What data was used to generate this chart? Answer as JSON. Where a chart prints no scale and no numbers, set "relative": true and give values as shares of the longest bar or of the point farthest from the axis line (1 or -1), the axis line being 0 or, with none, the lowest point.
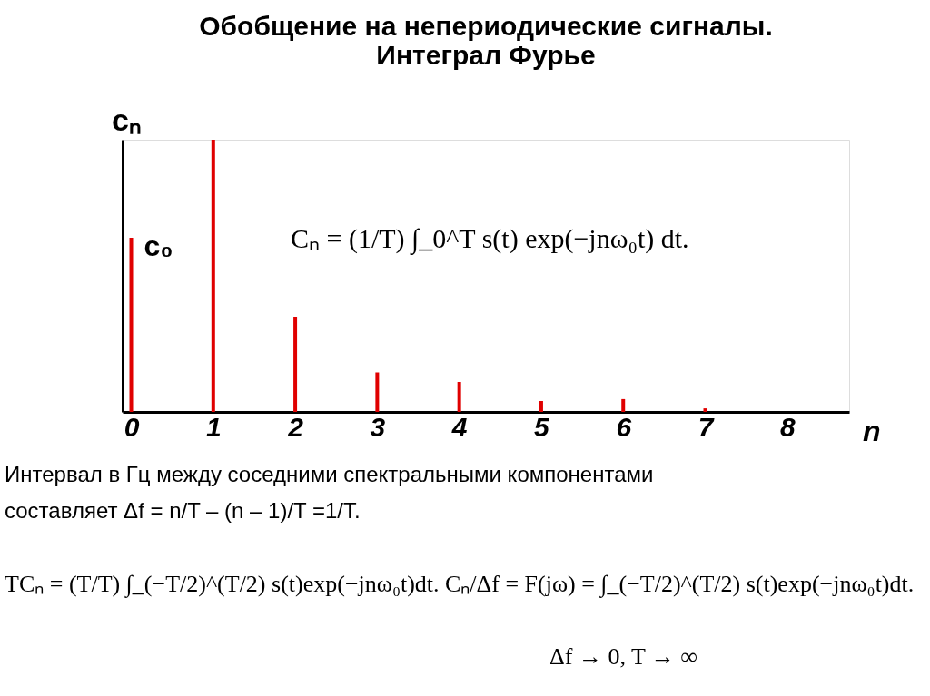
{
  "chart_data": {
    "type": "bar",
    "title": "Обобщение на непериодические сигналы. Интеграл Фурье",
    "xlabel": "n",
    "ylabel": "cₙ",
    "relative": true,
    "color": "#e00000",
    "grid": false,
    "categories": [
      "0",
      "1",
      "2",
      "3",
      "4",
      "5",
      "6",
      "7",
      "8"
    ],
    "values": [
      0.64,
      1,
      0.35,
      0.145,
      0.11,
      0.04,
      0.047,
      0.013,
      0
    ],
    "annotations": [
      {
        "text": "c₀",
        "x": "0",
        "y": 0.64
      },
      "Cₙ = (1/T) ∫_0^T s(t) exp(−jnω₀t) dt.",
      "Интервал в Гц между соседними спектральными компонентами",
      "составляет  Δf = n/T – (n – 1)/T =1/T.",
      "TCₙ = (T/T) ∫_(−T/2)^(T/2) s(t)exp(−jnω₀t)dt.",
      "Cₙ/Δf = F(jω) = ∫_(−T/2)^(T/2) s(t)exp(−jnω₀t)dt.",
      "Δf → 0, T → ∞"
    ]
  }
}
